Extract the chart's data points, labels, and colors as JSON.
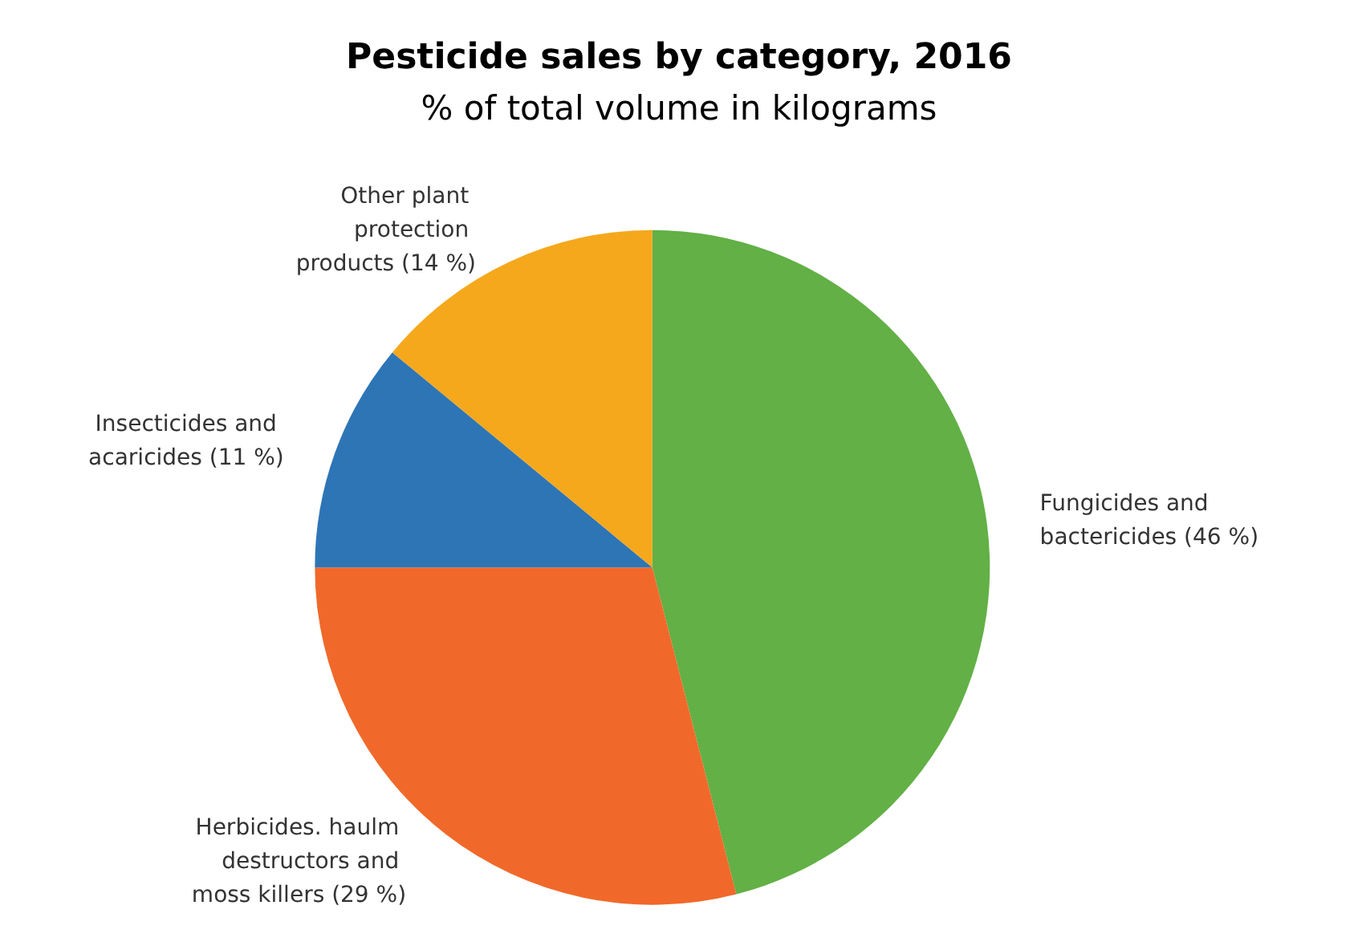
{
  "chart_data": {
    "type": "pie",
    "title": "Pesticide sales by category, 2016",
    "subtitle": "% of total volume in kilograms",
    "categories": [
      "Fungicides and bactericides (46 %)",
      "Herbicides. haulm destructors and moss killers (29 %)",
      "Insecticides and acaricides (11 %)",
      "Other plant protection products (14 %)"
    ],
    "values": [
      46,
      29,
      11,
      14
    ],
    "colors": [
      "#62b046",
      "#f0692a",
      "#2e75b6",
      "#f5a81c"
    ],
    "legend": false
  }
}
